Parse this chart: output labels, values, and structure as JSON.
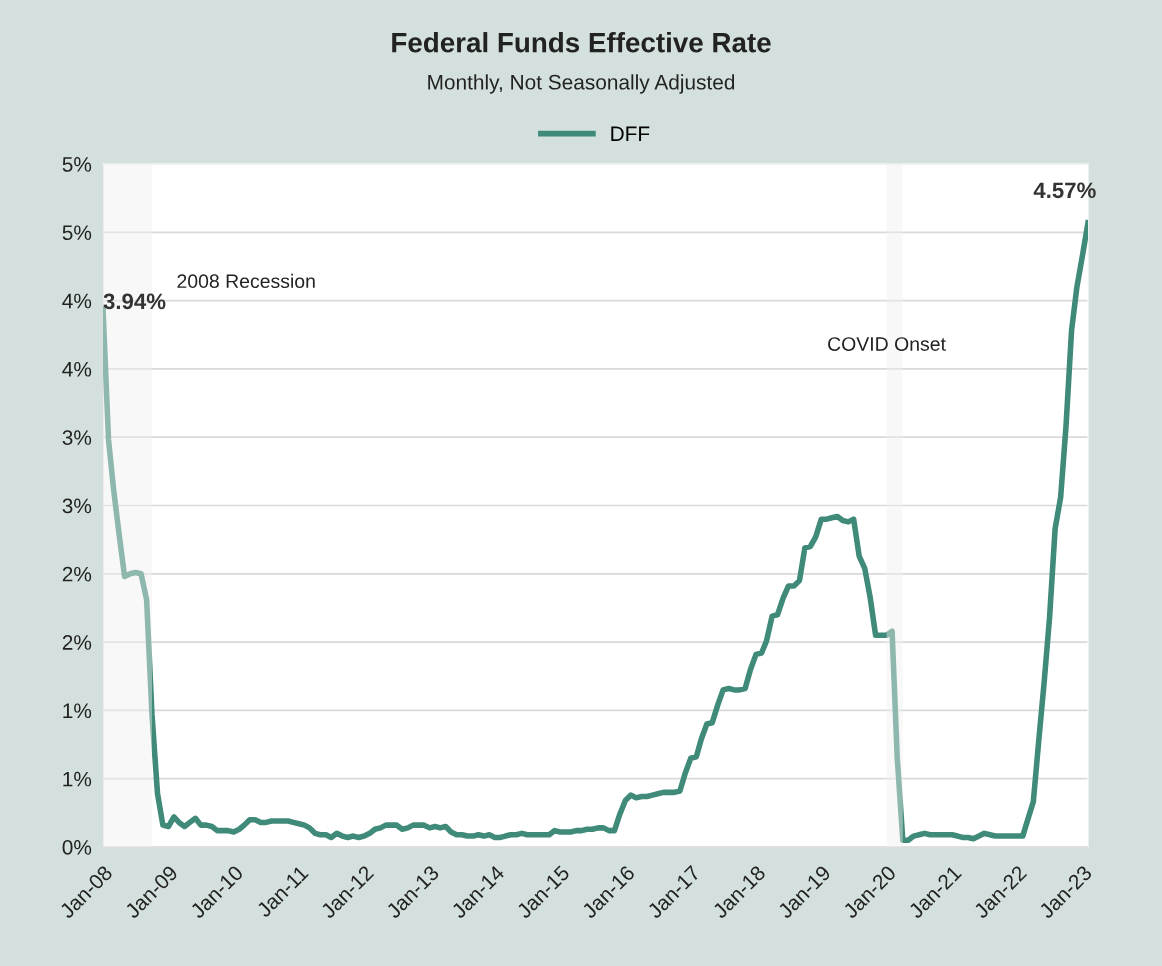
{
  "chart_data": {
    "type": "line",
    "title": "Federal Funds Effective Rate",
    "subtitle": "Monthly, Not Seasonally Adjusted",
    "x": [
      "2008-01",
      "2008-02",
      "2008-03",
      "2008-04",
      "2008-05",
      "2008-06",
      "2008-07",
      "2008-08",
      "2008-09",
      "2008-10",
      "2008-11",
      "2008-12",
      "2009-01",
      "2009-02",
      "2009-03",
      "2009-04",
      "2009-05",
      "2009-06",
      "2009-07",
      "2009-08",
      "2009-09",
      "2009-10",
      "2009-11",
      "2009-12",
      "2010-01",
      "2010-02",
      "2010-03",
      "2010-04",
      "2010-05",
      "2010-06",
      "2010-07",
      "2010-08",
      "2010-09",
      "2010-10",
      "2010-11",
      "2010-12",
      "2011-01",
      "2011-02",
      "2011-03",
      "2011-04",
      "2011-05",
      "2011-06",
      "2011-07",
      "2011-08",
      "2011-09",
      "2011-10",
      "2011-11",
      "2011-12",
      "2012-01",
      "2012-02",
      "2012-03",
      "2012-04",
      "2012-05",
      "2012-06",
      "2012-07",
      "2012-08",
      "2012-09",
      "2012-10",
      "2012-11",
      "2012-12",
      "2013-01",
      "2013-02",
      "2013-03",
      "2013-04",
      "2013-05",
      "2013-06",
      "2013-07",
      "2013-08",
      "2013-09",
      "2013-10",
      "2013-11",
      "2013-12",
      "2014-01",
      "2014-02",
      "2014-03",
      "2014-04",
      "2014-05",
      "2014-06",
      "2014-07",
      "2014-08",
      "2014-09",
      "2014-10",
      "2014-11",
      "2014-12",
      "2015-01",
      "2015-02",
      "2015-03",
      "2015-04",
      "2015-05",
      "2015-06",
      "2015-07",
      "2015-08",
      "2015-09",
      "2015-10",
      "2015-11",
      "2015-12",
      "2016-01",
      "2016-02",
      "2016-03",
      "2016-04",
      "2016-05",
      "2016-06",
      "2016-07",
      "2016-08",
      "2016-09",
      "2016-10",
      "2016-11",
      "2016-12",
      "2017-01",
      "2017-02",
      "2017-03",
      "2017-04",
      "2017-05",
      "2017-06",
      "2017-07",
      "2017-08",
      "2017-09",
      "2017-10",
      "2017-11",
      "2017-12",
      "2018-01",
      "2018-02",
      "2018-03",
      "2018-04",
      "2018-05",
      "2018-06",
      "2018-07",
      "2018-08",
      "2018-09",
      "2018-10",
      "2018-11",
      "2018-12",
      "2019-01",
      "2019-02",
      "2019-03",
      "2019-04",
      "2019-05",
      "2019-06",
      "2019-07",
      "2019-08",
      "2019-09",
      "2019-10",
      "2019-11",
      "2019-12",
      "2020-01",
      "2020-02",
      "2020-03",
      "2020-04",
      "2020-05",
      "2020-06",
      "2020-07",
      "2020-08",
      "2020-09",
      "2020-10",
      "2020-11",
      "2020-12",
      "2021-01",
      "2021-02",
      "2021-03",
      "2021-04",
      "2021-05",
      "2021-06",
      "2021-07",
      "2021-08",
      "2021-09",
      "2021-10",
      "2021-11",
      "2021-12",
      "2022-01",
      "2022-02",
      "2022-03",
      "2022-04",
      "2022-05",
      "2022-06",
      "2022-07",
      "2022-08",
      "2022-09",
      "2022-10",
      "2022-11",
      "2022-12",
      "2023-01",
      "2023-02"
    ],
    "series": [
      {
        "name": "DFF",
        "color": "#3f8a78",
        "values": [
          3.94,
          2.98,
          2.61,
          2.28,
          1.98,
          2.0,
          2.01,
          2.0,
          1.81,
          0.97,
          0.39,
          0.16,
          0.15,
          0.22,
          0.18,
          0.15,
          0.18,
          0.21,
          0.16,
          0.16,
          0.15,
          0.12,
          0.12,
          0.12,
          0.11,
          0.13,
          0.16,
          0.2,
          0.2,
          0.18,
          0.18,
          0.19,
          0.19,
          0.19,
          0.19,
          0.18,
          0.17,
          0.16,
          0.14,
          0.1,
          0.09,
          0.09,
          0.07,
          0.1,
          0.08,
          0.07,
          0.08,
          0.07,
          0.08,
          0.1,
          0.13,
          0.14,
          0.16,
          0.16,
          0.16,
          0.13,
          0.14,
          0.16,
          0.16,
          0.16,
          0.14,
          0.15,
          0.14,
          0.15,
          0.11,
          0.09,
          0.09,
          0.08,
          0.08,
          0.09,
          0.08,
          0.09,
          0.07,
          0.07,
          0.08,
          0.09,
          0.09,
          0.1,
          0.09,
          0.09,
          0.09,
          0.09,
          0.09,
          0.12,
          0.11,
          0.11,
          0.11,
          0.12,
          0.12,
          0.13,
          0.13,
          0.14,
          0.14,
          0.12,
          0.12,
          0.24,
          0.34,
          0.38,
          0.36,
          0.37,
          0.37,
          0.38,
          0.39,
          0.4,
          0.4,
          0.4,
          0.41,
          0.54,
          0.65,
          0.66,
          0.79,
          0.9,
          0.91,
          1.04,
          1.15,
          1.16,
          1.15,
          1.15,
          1.16,
          1.3,
          1.41,
          1.42,
          1.51,
          1.69,
          1.7,
          1.82,
          1.91,
          1.91,
          1.95,
          2.19,
          2.2,
          2.27,
          2.4,
          2.4,
          2.41,
          2.42,
          2.39,
          2.38,
          2.4,
          2.13,
          2.04,
          1.83,
          1.55,
          1.55,
          1.55,
          1.58,
          0.65,
          0.05,
          0.05,
          0.08,
          0.09,
          0.1,
          0.09,
          0.09,
          0.09,
          0.09,
          0.09,
          0.08,
          0.07,
          0.07,
          0.06,
          0.08,
          0.1,
          0.09,
          0.08,
          0.08,
          0.08,
          0.08,
          0.08,
          0.08,
          0.2,
          0.33,
          0.77,
          1.21,
          1.68,
          2.33,
          2.56,
          3.08,
          3.78,
          4.1,
          4.33,
          4.57
        ],
        "value_labels": [
          "3.94%",
          null,
          null,
          null,
          null,
          null,
          null,
          null,
          null,
          null,
          null,
          null,
          null,
          null,
          null,
          null,
          null,
          null,
          null,
          null,
          null,
          null,
          null,
          null,
          null,
          null,
          null,
          null,
          null,
          null,
          null,
          null,
          null,
          null,
          null,
          null,
          null,
          null,
          null,
          null,
          null,
          null,
          null,
          null,
          null,
          null,
          null,
          null,
          null,
          null,
          null,
          null,
          null,
          null,
          null,
          null,
          null,
          null,
          null,
          null,
          null,
          null,
          null,
          null,
          null,
          null,
          null,
          null,
          null,
          null,
          null,
          null,
          null,
          null,
          null,
          null,
          null,
          null,
          null,
          null,
          null,
          null,
          null,
          null,
          null,
          null,
          null,
          null,
          null,
          null,
          null,
          null,
          null,
          null,
          null,
          null,
          null,
          null,
          null,
          null,
          null,
          null,
          null,
          null,
          null,
          null,
          null,
          null,
          null,
          null,
          null,
          null,
          null,
          null,
          null,
          null,
          null,
          null,
          null,
          null,
          null,
          null,
          null,
          null,
          null,
          null,
          null,
          null,
          null,
          null,
          null,
          null,
          null,
          null,
          null,
          null,
          null,
          null,
          null,
          null,
          null,
          null,
          null,
          null,
          null,
          null,
          null,
          null,
          null,
          null,
          null,
          null,
          null,
          null,
          null,
          null,
          null,
          null,
          null,
          null,
          null,
          null,
          null,
          null,
          null,
          null,
          null,
          null,
          null,
          null,
          null,
          null,
          null,
          null,
          null,
          null,
          null,
          null,
          null,
          null,
          null,
          "4.57%"
        ]
      }
    ],
    "xlim": [
      "2008-01",
      "2023-02"
    ],
    "xticks": [
      {
        "value": "2008-01",
        "label": "Jan-08"
      },
      {
        "value": "2009-01",
        "label": "Jan-09"
      },
      {
        "value": "2010-01",
        "label": "Jan-10"
      },
      {
        "value": "2011-01",
        "label": "Jan-11"
      },
      {
        "value": "2012-01",
        "label": "Jan-12"
      },
      {
        "value": "2013-01",
        "label": "Jan-13"
      },
      {
        "value": "2014-01",
        "label": "Jan-14"
      },
      {
        "value": "2015-01",
        "label": "Jan-15"
      },
      {
        "value": "2016-01",
        "label": "Jan-16"
      },
      {
        "value": "2017-01",
        "label": "Jan-17"
      },
      {
        "value": "2018-01",
        "label": "Jan-18"
      },
      {
        "value": "2019-01",
        "label": "Jan-19"
      },
      {
        "value": "2020-01",
        "label": "Jan-20"
      },
      {
        "value": "2021-01",
        "label": "Jan-21"
      },
      {
        "value": "2022-01",
        "label": "Jan-22"
      },
      {
        "value": "2023-01",
        "label": "Jan-23"
      }
    ],
    "ylim": [
      0,
      5
    ],
    "yticks": [
      {
        "value": 0,
        "label": "0%"
      },
      {
        "value": 0.5,
        "label": "1%"
      },
      {
        "value": 1,
        "label": "1%"
      },
      {
        "value": 1.5,
        "label": "2%"
      },
      {
        "value": 2,
        "label": "2%"
      },
      {
        "value": 2.5,
        "label": "3%"
      },
      {
        "value": 3,
        "label": "3%"
      },
      {
        "value": 3.5,
        "label": "4%"
      },
      {
        "value": 4,
        "label": "4%"
      },
      {
        "value": 4.5,
        "label": "5%"
      },
      {
        "value": 5,
        "label": "5%"
      }
    ],
    "bands": [
      {
        "axis": "x",
        "from": "2008-01",
        "to": "2008-10",
        "label": "2008 Recession",
        "color": "#f0f0f0"
      },
      {
        "axis": "x",
        "from": "2020-01",
        "to": "2020-04",
        "label": "COVID Onset",
        "color": "#f0f0f0"
      }
    ],
    "grid": "y",
    "legend": "top",
    "marker": "none",
    "line_style": "solid"
  }
}
